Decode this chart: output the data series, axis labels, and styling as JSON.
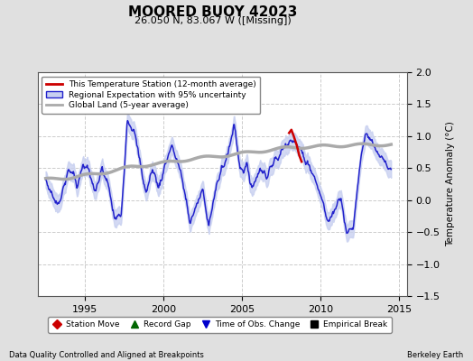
{
  "title": "MOORED BUOY 42023",
  "subtitle": "26.050 N, 83.067 W ([Missing])",
  "ylabel": "Temperature Anomaly (°C)",
  "xlim": [
    1992.0,
    2015.5
  ],
  "ylim": [
    -1.5,
    2.0
  ],
  "yticks": [
    -1.5,
    -1.0,
    -0.5,
    0.0,
    0.5,
    1.0,
    1.5,
    2.0
  ],
  "xticks": [
    1995,
    2000,
    2005,
    2010,
    2015
  ],
  "bg_color": "#e0e0e0",
  "plot_bg_color": "#ffffff",
  "grid_color": "#cccccc",
  "footer_left": "Data Quality Controlled and Aligned at Breakpoints",
  "footer_right": "Berkeley Earth",
  "legend_entries": [
    "This Temperature Station (12-month average)",
    "Regional Expectation with 95% uncertainty",
    "Global Land (5-year average)"
  ],
  "legend_colors": [
    "#cc0000",
    "#2222cc",
    "#aaaaaa"
  ],
  "marker_legend": [
    {
      "label": "Station Move",
      "color": "#cc0000",
      "marker": "D"
    },
    {
      "label": "Record Gap",
      "color": "#006600",
      "marker": "^"
    },
    {
      "label": "Time of Obs. Change",
      "color": "#0000cc",
      "marker": "v"
    },
    {
      "label": "Empirical Break",
      "color": "#000000",
      "marker": "s"
    }
  ],
  "regional_t": [
    1992.5,
    1992.9,
    1993.3,
    1993.7,
    1994.1,
    1994.5,
    1994.9,
    1995.3,
    1995.7,
    1996.1,
    1996.5,
    1996.9,
    1997.3,
    1997.7,
    1998.1,
    1998.5,
    1998.9,
    1999.3,
    1999.7,
    2000.1,
    2000.5,
    2000.9,
    2001.3,
    2001.7,
    2002.1,
    2002.5,
    2002.9,
    2003.3,
    2003.7,
    2004.1,
    2004.5,
    2004.9,
    2005.3,
    2005.7,
    2006.1,
    2006.5,
    2006.9,
    2007.3,
    2007.7,
    2008.1,
    2008.5,
    2008.9,
    2009.3,
    2009.7,
    2010.1,
    2010.5,
    2010.9,
    2011.3,
    2011.7,
    2012.1,
    2012.5,
    2012.9,
    2013.3,
    2013.7,
    2014.1,
    2014.5
  ],
  "regional_v": [
    0.3,
    0.1,
    -0.1,
    0.3,
    0.5,
    0.2,
    0.6,
    0.4,
    0.1,
    0.5,
    0.2,
    -0.3,
    -0.25,
    1.3,
    1.1,
    0.6,
    0.1,
    0.5,
    0.2,
    0.55,
    0.85,
    0.6,
    0.2,
    -0.35,
    -0.1,
    0.15,
    -0.35,
    0.1,
    0.5,
    0.7,
    1.2,
    0.5,
    0.5,
    0.2,
    0.5,
    0.4,
    0.55,
    0.65,
    0.85,
    1.0,
    0.85,
    0.7,
    0.55,
    0.3,
    0.0,
    -0.35,
    -0.15,
    0.1,
    -0.55,
    -0.4,
    0.55,
    1.1,
    0.85,
    0.7,
    0.55,
    0.45
  ],
  "uncertainty": 0.13,
  "global_t": [
    1992.5,
    1994.0,
    1996.0,
    1998.0,
    2000.0,
    2002.0,
    2004.0,
    2006.0,
    2008.0,
    2010.0,
    2012.0,
    2014.5
  ],
  "global_v": [
    0.32,
    0.35,
    0.42,
    0.52,
    0.58,
    0.65,
    0.7,
    0.76,
    0.82,
    0.84,
    0.86,
    0.87
  ],
  "red_t": [
    2008.0,
    2008.15,
    2008.3,
    2008.5,
    2008.65,
    2008.8
  ],
  "red_v": [
    1.05,
    1.1,
    1.0,
    0.85,
    0.7,
    0.6
  ]
}
